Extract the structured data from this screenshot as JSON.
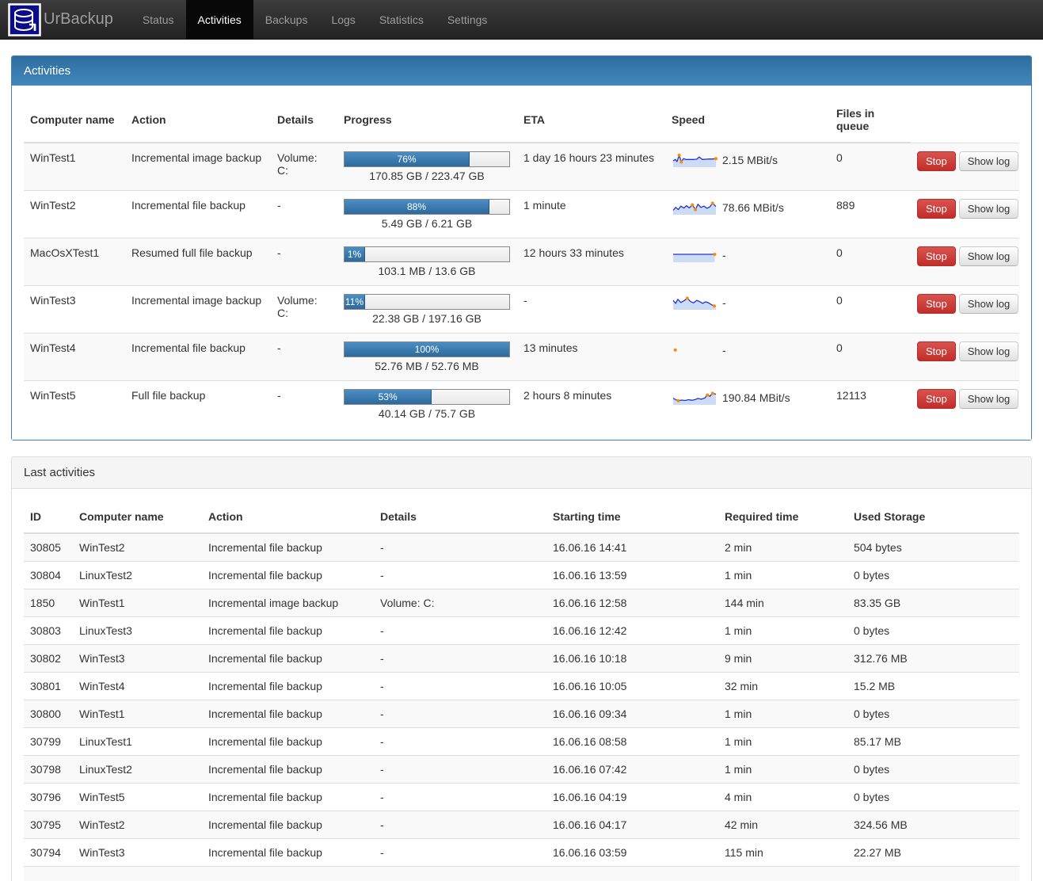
{
  "navbar": {
    "brand": "UrBackup",
    "items": [
      {
        "label": "Status",
        "active": false
      },
      {
        "label": "Activities",
        "active": true
      },
      {
        "label": "Backups",
        "active": false
      },
      {
        "label": "Logs",
        "active": false
      },
      {
        "label": "Statistics",
        "active": false
      },
      {
        "label": "Settings",
        "active": false
      }
    ]
  },
  "buttons": {
    "stop": "Stop",
    "show_log": "Show log"
  },
  "activities": {
    "title": "Activities",
    "columns": [
      "Computer name",
      "Action",
      "Details",
      "Progress",
      "ETA",
      "Speed",
      "Files in queue"
    ],
    "rows": [
      {
        "computer": "WinTest1",
        "action": "Incremental image backup",
        "details": "Volume: C:",
        "percent": 76,
        "percent_label": "76%",
        "size": "170.85 GB / 223.47 GB",
        "eta": "1 day 16 hours 23 minutes",
        "speed": "2.15 MBit/s",
        "queue": "0",
        "spark": {
          "line": [
            [
              0,
              62
            ],
            [
              5,
              52
            ],
            [
              9,
              68
            ],
            [
              14,
              18
            ],
            [
              19,
              72
            ],
            [
              24,
              45
            ],
            [
              30,
              52
            ],
            [
              38,
              52
            ],
            [
              47,
              52
            ],
            [
              55,
              50
            ],
            [
              61,
              32
            ],
            [
              68,
              52
            ],
            [
              76,
              50
            ],
            [
              84,
              48
            ],
            [
              92,
              48
            ],
            [
              100,
              45
            ]
          ],
          "dots": [
            [
              14,
              18
            ],
            [
              19,
              72
            ],
            [
              100,
              45
            ]
          ]
        }
      },
      {
        "computer": "WinTest2",
        "action": "Incremental file backup",
        "details": "-",
        "percent": 88,
        "percent_label": "88%",
        "size": "5.49 GB / 6.21 GB",
        "eta": "1 minute",
        "speed": "78.66 MBit/s",
        "queue": "889",
        "spark": {
          "line": [
            [
              0,
              78
            ],
            [
              6,
              55
            ],
            [
              12,
              72
            ],
            [
              18,
              45
            ],
            [
              25,
              60
            ],
            [
              31,
              42
            ],
            [
              38,
              58
            ],
            [
              45,
              35
            ],
            [
              52,
              72
            ],
            [
              58,
              30
            ],
            [
              65,
              55
            ],
            [
              72,
              45
            ],
            [
              79,
              62
            ],
            [
              86,
              50
            ],
            [
              92,
              22
            ],
            [
              100,
              48
            ]
          ],
          "dots": [
            [
              45,
              35
            ],
            [
              52,
              72
            ],
            [
              92,
              22
            ]
          ]
        }
      },
      {
        "computer": "MacOsXTest1",
        "action": "Resumed full file backup",
        "details": "-",
        "percent": 1,
        "percent_label": "1%",
        "size": "103.1 MB / 13.6 GB",
        "eta": "12 hours 33 minutes",
        "speed": "-",
        "queue": "0",
        "spark": {
          "line": [
            [
              0,
              50
            ],
            [
              97,
              50
            ]
          ],
          "dots": [
            [
              97,
              50
            ]
          ]
        }
      },
      {
        "computer": "WinTest3",
        "action": "Incremental image backup",
        "details": "Volume: C:",
        "percent": 11,
        "percent_label": "11%",
        "size": "22.38 GB / 197.16 GB",
        "eta": "-",
        "speed": "-",
        "queue": "0",
        "spark": {
          "line": [
            [
              0,
              38
            ],
            [
              6,
              62
            ],
            [
              11,
              30
            ],
            [
              18,
              55
            ],
            [
              25,
              42
            ],
            [
              33,
              22
            ],
            [
              41,
              48
            ],
            [
              48,
              58
            ],
            [
              55,
              38
            ],
            [
              62,
              48
            ],
            [
              69,
              62
            ],
            [
              76,
              50
            ],
            [
              83,
              58
            ],
            [
              91,
              75
            ],
            [
              100,
              85
            ]
          ],
          "dots": [
            [
              33,
              22
            ],
            [
              96,
              82
            ]
          ]
        }
      },
      {
        "computer": "WinTest4",
        "action": "Incremental file backup",
        "details": "-",
        "percent": 100,
        "percent_label": "100%",
        "size": "52.76 MB / 52.76 MB",
        "eta": "13 minutes",
        "speed": "-",
        "queue": "0",
        "spark": {
          "line": [],
          "dots": [
            [
              5,
              55
            ]
          ]
        }
      },
      {
        "computer": "WinTest5",
        "action": "Full file backup",
        "details": "-",
        "percent": 53,
        "percent_label": "53%",
        "size": "40.14 GB / 75.7 GB",
        "eta": "2 hours 8 minutes",
        "speed": "190.84 MBit/s",
        "queue": "12113",
        "spark": {
          "line": [
            [
              0,
              60
            ],
            [
              6,
              72
            ],
            [
              12,
              80
            ],
            [
              20,
              75
            ],
            [
              28,
              78
            ],
            [
              36,
              72
            ],
            [
              44,
              76
            ],
            [
              52,
              70
            ],
            [
              58,
              62
            ],
            [
              66,
              68
            ],
            [
              74,
              58
            ],
            [
              80,
              35
            ],
            [
              86,
              45
            ],
            [
              92,
              22
            ],
            [
              100,
              28
            ]
          ],
          "dots": [
            [
              12,
              80
            ],
            [
              80,
              35
            ],
            [
              92,
              22
            ]
          ]
        }
      }
    ]
  },
  "last_activities": {
    "title": "Last activities",
    "columns": [
      "ID",
      "Computer name",
      "Action",
      "Details",
      "Starting time",
      "Required time",
      "Used Storage"
    ],
    "rows": [
      [
        "30805",
        "WinTest2",
        "Incremental file backup",
        "-",
        "16.06.16 14:41",
        "2 min",
        "504 bytes"
      ],
      [
        "30804",
        "LinuxTest2",
        "Incremental file backup",
        "-",
        "16.06.16 13:59",
        "1 min",
        "0 bytes"
      ],
      [
        "1850",
        "WinTest1",
        "Incremental image backup",
        "Volume: C:",
        "16.06.16 12:58",
        "144 min",
        "83.35 GB"
      ],
      [
        "30803",
        "LinuxTest3",
        "Incremental file backup",
        "-",
        "16.06.16 12:42",
        "1 min",
        "0 bytes"
      ],
      [
        "30802",
        "WinTest3",
        "Incremental file backup",
        "-",
        "16.06.16 10:18",
        "9 min",
        "312.76 MB"
      ],
      [
        "30801",
        "WinTest4",
        "Incremental file backup",
        "-",
        "16.06.16 10:05",
        "32 min",
        "15.2 MB"
      ],
      [
        "30800",
        "WinTest1",
        "Incremental file backup",
        "-",
        "16.06.16 09:34",
        "1 min",
        "0 bytes"
      ],
      [
        "30799",
        "LinuxTest1",
        "Incremental file backup",
        "-",
        "16.06.16 08:58",
        "1 min",
        "85.17 MB"
      ],
      [
        "30798",
        "LinuxTest2",
        "Incremental file backup",
        "-",
        "16.06.16 07:42",
        "1 min",
        "0 bytes"
      ],
      [
        "30796",
        "WinTest5",
        "Incremental file backup",
        "-",
        "16.06.16 04:19",
        "4 min",
        "0 bytes"
      ],
      [
        "30795",
        "WinTest2",
        "Incremental file backup",
        "-",
        "16.06.16 04:17",
        "42 min",
        "324.56 MB"
      ],
      [
        "30794",
        "WinTest3",
        "Incremental file backup",
        "-",
        "16.06.16 03:59",
        "115 min",
        "22.27 MB"
      ]
    ]
  },
  "colors": {
    "panel_header_blue_top": "#2f6d9f",
    "panel_header_blue_bottom": "#4287bb",
    "progress_fill_top": "#4a8ec4",
    "progress_fill_bottom": "#2e699c",
    "stop_red": "#d9534f",
    "spark_line": "#2233cc",
    "spark_fill": "#ccdbf6",
    "spark_dot": "#ff8a00",
    "stripe": "#f9f9f9",
    "row_border": "#dddddd",
    "logo_navy": "#0b0c8a"
  }
}
